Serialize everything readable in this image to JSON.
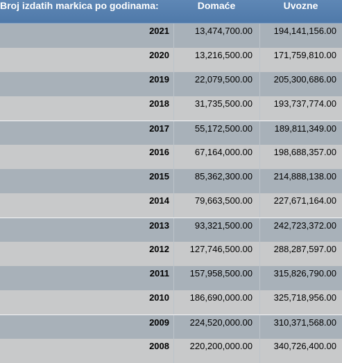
{
  "header": {
    "col_label": "Broj izdatih markica po godinama:",
    "col_domace": "Domaće",
    "col_uvozne": "Uvozne"
  },
  "rows": [
    {
      "year": "2021",
      "domace": "13,474,700.00",
      "uvozne": "194,141,156.00"
    },
    {
      "year": "2020",
      "domace": "13,216,500.00",
      "uvozne": "171,759,810.00"
    },
    {
      "year": "2019",
      "domace": "22,079,500.00",
      "uvozne": "205,300,686.00"
    },
    {
      "year": "2018",
      "domace": "31,735,500.00",
      "uvozne": "193,737,774.00"
    },
    {
      "year": "2017",
      "domace": "55,172,500.00",
      "uvozne": "189,811,349.00"
    },
    {
      "year": "2016",
      "domace": "67,164,000.00",
      "uvozne": "198,688,357.00"
    },
    {
      "year": "2015",
      "domace": "85,362,300.00",
      "uvozne": "214,888,138.00"
    },
    {
      "year": "2014",
      "domace": "79,663,500.00",
      "uvozne": "227,671,164.00"
    },
    {
      "year": "2013",
      "domace": "93,321,500.00",
      "uvozne": "242,723,372.00"
    },
    {
      "year": "2012",
      "domace": "127,746,500.00",
      "uvozne": "288,287,597.00"
    },
    {
      "year": "2011",
      "domace": "157,958,500.00",
      "uvozne": "315,826,790.00"
    },
    {
      "year": "2010",
      "domace": "186,690,000.00",
      "uvozne": "325,718,956.00"
    },
    {
      "year": "2009",
      "domace": "224,520,000.00",
      "uvozne": "310,371,568.00"
    },
    {
      "year": "2008",
      "domace": "220,200,000.00",
      "uvozne": "340,726,400.00"
    }
  ]
}
